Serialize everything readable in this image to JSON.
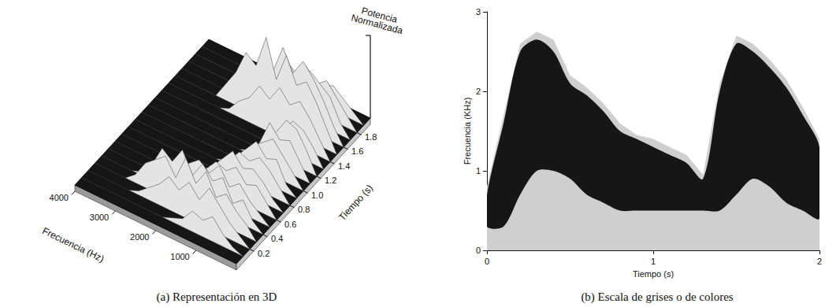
{
  "chart_data": [
    {
      "type": "surface3d",
      "caption": "(a) Representación en 3D",
      "xlabel": "Frecuencia (Hz)",
      "ylabel": "Tiempo (s)",
      "zlabel": "Potencia Normalizada",
      "xlim": [
        0,
        4000
      ],
      "xticks": [
        1000,
        2000,
        3000,
        4000
      ],
      "ylim": [
        0,
        2
      ],
      "yticks": [
        0.2,
        0.4,
        0.6,
        0.8,
        {
          "value": 1,
          "label": "1.0"
        },
        1.2,
        1.4,
        1.6,
        1.8
      ],
      "zlim": [
        0,
        1
      ],
      "x": [
        0,
        250,
        500,
        750,
        1000,
        1250,
        1500,
        1750,
        2000,
        2250,
        2500,
        2750,
        3000,
        3250,
        3500,
        3750,
        4000
      ],
      "y": [
        0.1,
        0.2,
        0.3,
        0.4,
        0.5,
        0.6,
        0.7,
        0.8,
        0.9,
        1.0,
        1.1,
        1.2,
        1.3,
        1.4,
        1.5,
        1.6,
        1.7,
        1.8,
        1.9
      ],
      "z": [
        [
          0,
          0.05,
          0.15,
          0.3,
          0.2,
          0.25,
          0.1,
          0.05,
          0,
          0,
          0,
          0,
          0,
          0,
          0,
          0,
          0
        ],
        [
          0,
          0.1,
          0.2,
          0.35,
          0.5,
          0.3,
          0.45,
          0.3,
          0.4,
          0.25,
          0.15,
          0.05,
          0,
          0,
          0,
          0,
          0
        ],
        [
          0,
          0.15,
          0.25,
          0.4,
          0.3,
          0.55,
          0.35,
          0.6,
          0.3,
          0.5,
          0.4,
          0.3,
          0.1,
          0,
          0,
          0,
          0
        ],
        [
          0,
          0.1,
          0.3,
          0.2,
          0.45,
          0.35,
          0.5,
          0.3,
          0.55,
          0.35,
          0.45,
          0.2,
          0.05,
          0,
          0,
          0,
          0
        ],
        [
          0,
          0.1,
          0.2,
          0.35,
          0.25,
          0.45,
          0.3,
          0.4,
          0.3,
          0.2,
          0.1,
          0,
          0,
          0,
          0,
          0,
          0
        ],
        [
          0,
          0.15,
          0.3,
          0.25,
          0.4,
          0.3,
          0.35,
          0.2,
          0.15,
          0.05,
          0,
          0,
          0,
          0,
          0,
          0,
          0
        ],
        [
          0,
          0.1,
          0.25,
          0.35,
          0.3,
          0.45,
          0.3,
          0.15,
          0.05,
          0,
          0,
          0,
          0,
          0,
          0,
          0,
          0
        ],
        [
          0,
          0.15,
          0.3,
          0.4,
          0.3,
          0.35,
          0.2,
          0.1,
          0,
          0,
          0,
          0,
          0,
          0,
          0,
          0,
          0
        ],
        [
          0,
          0.1,
          0.35,
          0.3,
          0.45,
          0.3,
          0.15,
          0.05,
          0,
          0,
          0,
          0,
          0,
          0,
          0,
          0,
          0
        ],
        [
          0,
          0.15,
          0.3,
          0.45,
          0.35,
          0.25,
          0.1,
          0,
          0,
          0,
          0,
          0,
          0,
          0,
          0,
          0,
          0
        ],
        [
          0,
          0.2,
          0.4,
          0.35,
          0.5,
          0.2,
          0.05,
          0,
          0,
          0,
          0,
          0,
          0,
          0,
          0,
          0,
          0
        ],
        [
          0,
          0.25,
          0.45,
          0.5,
          0.3,
          0.1,
          0,
          0,
          0,
          0,
          0,
          0,
          0,
          0,
          0,
          0,
          0
        ],
        [
          0,
          0.2,
          0.35,
          0.4,
          0.25,
          0.05,
          0,
          0,
          0,
          0,
          0,
          0,
          0,
          0,
          0,
          0,
          0
        ],
        [
          0,
          0.2,
          0.4,
          0.55,
          0.45,
          0.6,
          0.4,
          0.5,
          0.3,
          0.2,
          0.05,
          0,
          0,
          0,
          0,
          0,
          0
        ],
        [
          0,
          0.25,
          0.5,
          0.7,
          0.6,
          0.9,
          0.55,
          1,
          0.6,
          0.7,
          0.4,
          0.2,
          0,
          0,
          0,
          0,
          0
        ],
        [
          0,
          0.2,
          0.45,
          0.65,
          0.8,
          0.6,
          0.85,
          0.5,
          0.6,
          0.4,
          0.15,
          0,
          0,
          0,
          0,
          0,
          0
        ],
        [
          0,
          0.15,
          0.4,
          0.5,
          0.6,
          0.45,
          0.55,
          0.4,
          0.35,
          0.1,
          0,
          0,
          0,
          0,
          0,
          0,
          0
        ],
        [
          0,
          0.15,
          0.3,
          0.45,
          0.35,
          0.5,
          0.3,
          0.2,
          0.1,
          0,
          0,
          0,
          0,
          0,
          0,
          0,
          0
        ],
        [
          0,
          0.1,
          0.2,
          0.3,
          0.25,
          0.2,
          0.1,
          0,
          0,
          0,
          0,
          0,
          0,
          0,
          0,
          0,
          0
        ]
      ]
    },
    {
      "type": "spectrogram",
      "caption": "(b) Escala de grises o de colores",
      "xlabel": "Tiempo (s)",
      "ylabel": "Frecuencia (KHz)",
      "xlim": [
        0,
        2
      ],
      "xticks": [
        0,
        1,
        2
      ],
      "ylim": [
        0,
        3
      ],
      "yticks": [
        0,
        1,
        2,
        3
      ],
      "x": [
        0,
        0.1,
        0.2,
        0.3,
        0.4,
        0.5,
        0.6,
        0.7,
        0.8,
        0.9,
        1.0,
        1.1,
        1.2,
        1.3,
        1.4,
        1.5,
        1.6,
        1.7,
        1.8,
        1.9,
        2.0
      ],
      "envelope": [
        0.8,
        1.7,
        2.6,
        2.75,
        2.65,
        2.2,
        2.05,
        1.85,
        1.6,
        1.45,
        1.4,
        1.3,
        1.2,
        0.95,
        2.1,
        2.7,
        2.6,
        2.4,
        2.15,
        1.8,
        1.4
      ],
      "band_high": [
        0.7,
        1.6,
        2.5,
        2.65,
        2.5,
        2.1,
        1.95,
        1.75,
        1.5,
        1.4,
        1.3,
        1.2,
        1.1,
        0.9,
        2.0,
        2.6,
        2.5,
        2.3,
        2.05,
        1.7,
        1.3
      ],
      "band_low": [
        0.3,
        0.3,
        0.7,
        1.0,
        1.0,
        0.9,
        0.7,
        0.6,
        0.5,
        0.5,
        0.5,
        0.5,
        0.5,
        0.5,
        0.5,
        0.7,
        0.9,
        0.8,
        0.6,
        0.5,
        0.4
      ]
    }
  ]
}
